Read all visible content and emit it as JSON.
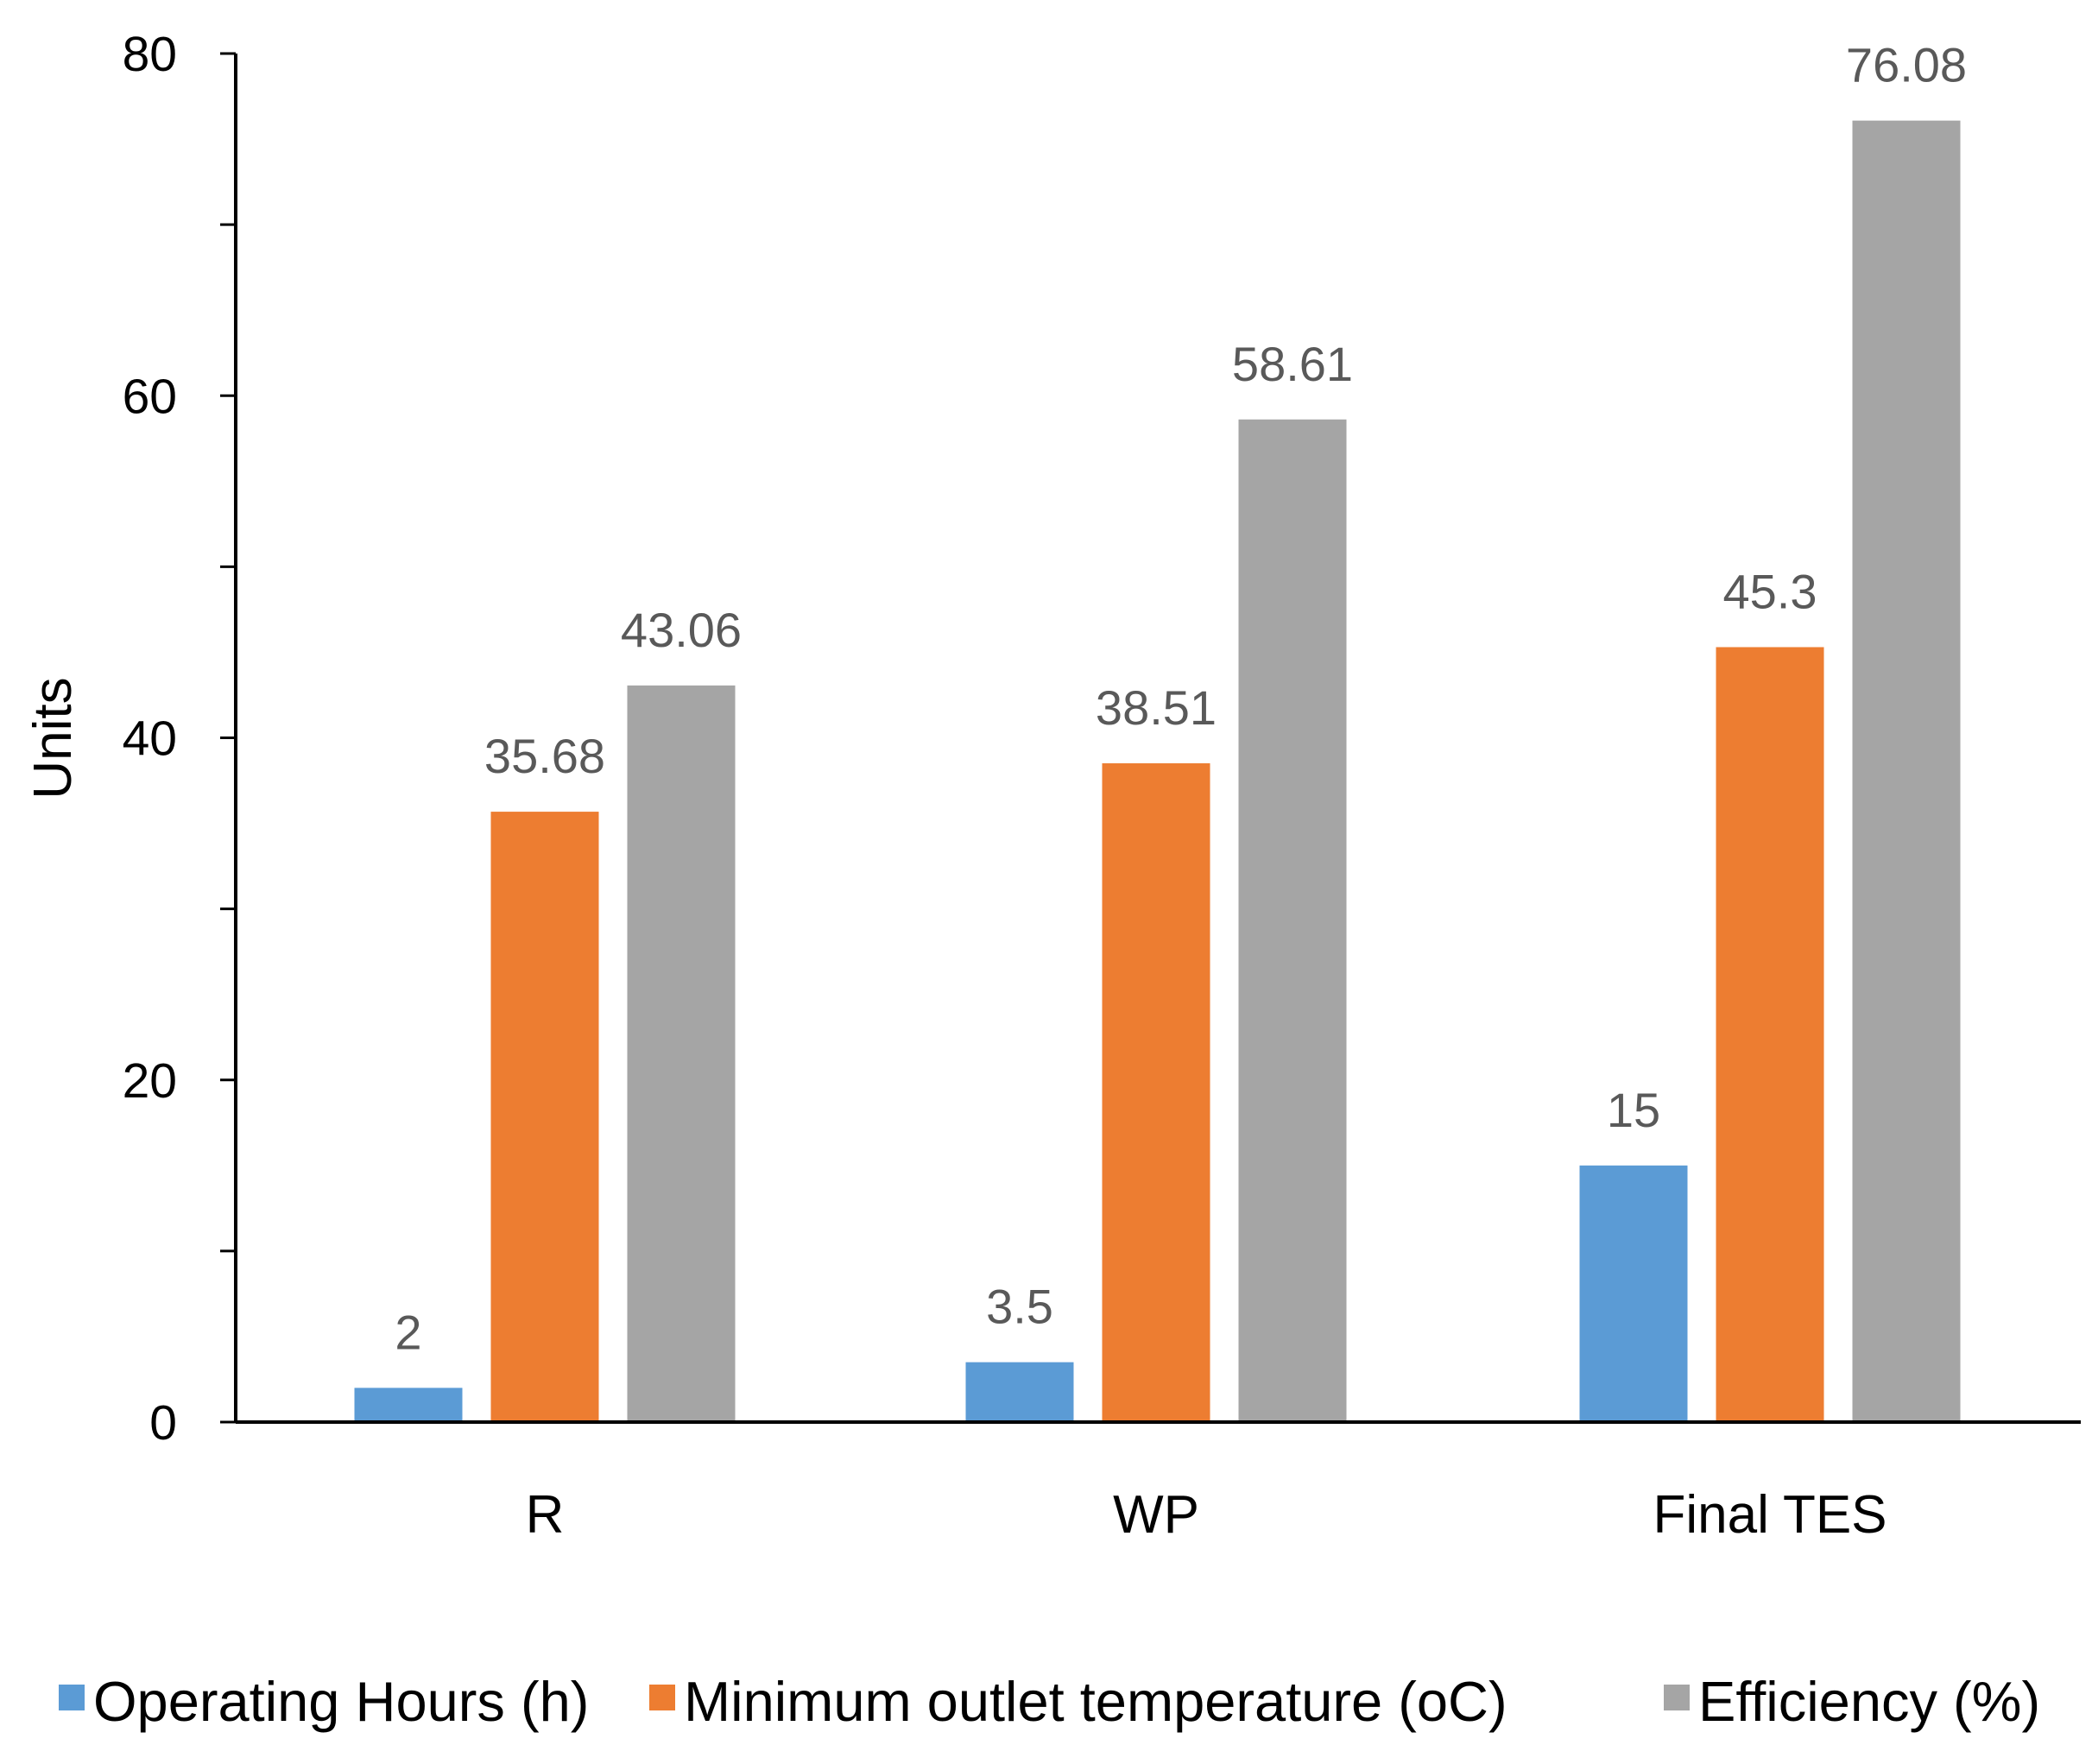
{
  "chart_data": {
    "type": "bar",
    "title": "",
    "xlabel": "",
    "ylabel": "Units",
    "ylim": [
      0,
      80
    ],
    "y_ticks": [
      0,
      20,
      40,
      60,
      80
    ],
    "y_minor_step": 10,
    "grid": false,
    "legend_position": "bottom",
    "categories": [
      "R",
      "WP",
      "Final TES"
    ],
    "series": [
      {
        "name": "Operating Hours (h)",
        "color": "#5B9BD5",
        "values": [
          2,
          3.5,
          15
        ],
        "labels": [
          "2",
          "3.5",
          "15"
        ]
      },
      {
        "name": "Minimum outlet temperature (oC)",
        "color": "#ED7D31",
        "values": [
          35.68,
          38.51,
          45.3
        ],
        "labels": [
          "35.68",
          "38.51",
          "45.3"
        ]
      },
      {
        "name": "Efficiency (%)",
        "color": "#A5A5A5",
        "values": [
          43.06,
          58.61,
          76.08
        ],
        "labels": [
          "43.06",
          "58.61",
          "76.08"
        ]
      }
    ]
  }
}
